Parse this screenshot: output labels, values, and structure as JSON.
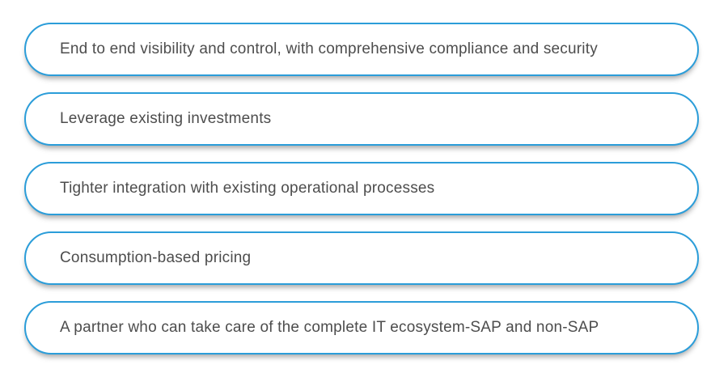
{
  "colors": {
    "background": "#ffffff",
    "pill_border": "#2b9dd9",
    "pill_text": "#4d4d4d"
  },
  "benefits": {
    "items": [
      "End to end visibility and control, with comprehensive compliance and security",
      "Leverage existing investments",
      "Tighter integration with existing operational processes",
      "Consumption-based pricing",
      "A partner who can take care of the complete IT ecosystem-SAP and non-SAP"
    ]
  }
}
